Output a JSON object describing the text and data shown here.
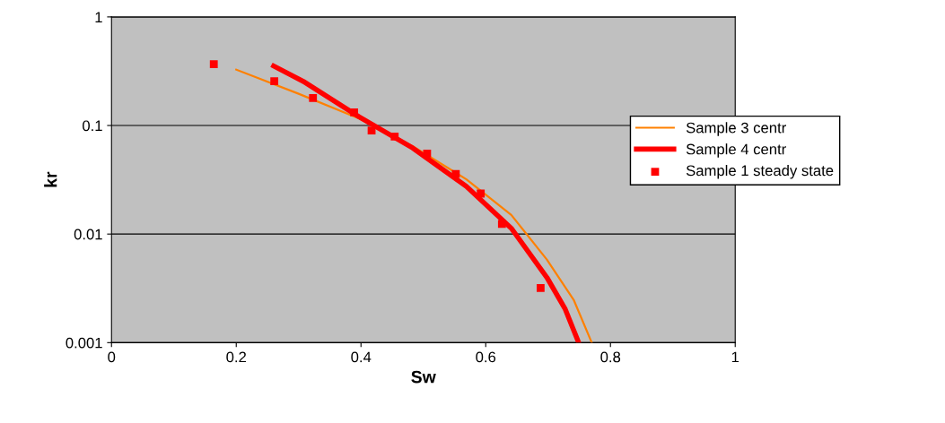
{
  "chart_data": {
    "type": "line",
    "xlabel": "Sw",
    "ylabel": "kr",
    "log": "y",
    "xlim": [
      0,
      1
    ],
    "xticks": [
      0,
      0.2,
      0.4,
      0.6,
      0.8,
      1
    ],
    "ylim": [
      0.001,
      1
    ],
    "yticks": [
      0.001,
      0.01,
      0.1,
      1
    ],
    "grid": "y",
    "legend": "right",
    "series": [
      {
        "name": "Sample 3 centr",
        "color": "#ff8000",
        "x": [
          0.2,
          0.3,
          0.397,
          0.483,
          0.569,
          0.641,
          0.698,
          0.741,
          0.77
        ],
        "values": [
          0.327,
          0.196,
          0.116,
          0.0644,
          0.0319,
          0.015,
          0.00582,
          0.00248,
          0.001
        ]
      },
      {
        "name": "Sample 4 centr",
        "color": "#ff0000",
        "x": [
          0.26,
          0.31,
          0.397,
          0.483,
          0.569,
          0.641,
          0.698,
          0.727,
          0.749
        ],
        "values": [
          0.353,
          0.25,
          0.12,
          0.062,
          0.0275,
          0.0113,
          0.00399,
          0.00206,
          0.001
        ]
      },
      {
        "name": "Sample 1 steady state",
        "type": "scatter",
        "marker": "square",
        "color": "#ff0000",
        "x": [
          0.164,
          0.261,
          0.323,
          0.389,
          0.417,
          0.454,
          0.506,
          0.552,
          0.592,
          0.626,
          0.688
        ],
        "values": [
          0.367,
          0.256,
          0.179,
          0.132,
          0.09,
          0.079,
          0.055,
          0.0358,
          0.0236,
          0.0124,
          0.00318
        ]
      }
    ]
  }
}
